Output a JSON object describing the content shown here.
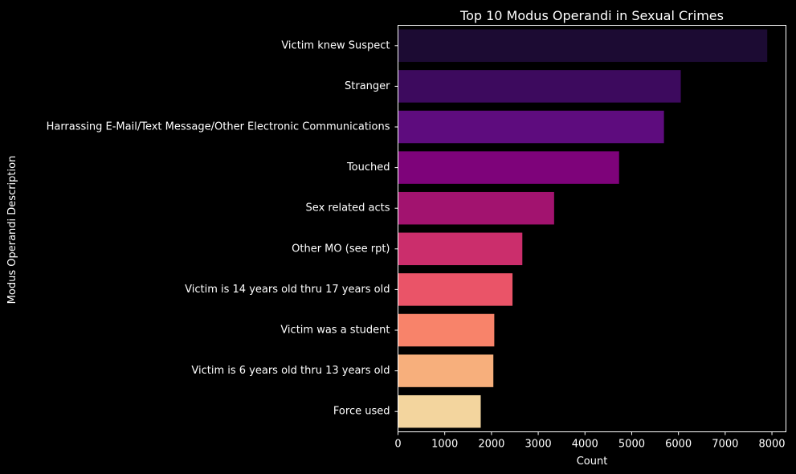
{
  "chart_data": {
    "type": "bar",
    "orientation": "horizontal",
    "title": "Top 10 Modus Operandi in Sexual Crimes",
    "xlabel": "Count",
    "ylabel": "Modus Operandi Description",
    "xlim": [
      0,
      8300
    ],
    "xticks": [
      0,
      1000,
      2000,
      3000,
      4000,
      5000,
      6000,
      7000,
      8000
    ],
    "xtick_labels": [
      "0",
      "1000",
      "2000",
      "3000",
      "4000",
      "5000",
      "6000",
      "7000",
      "8000"
    ],
    "grid": false,
    "legend": "none",
    "categories": [
      "Victim knew Suspect",
      "Stranger",
      "Harrassing E-Mail/Text Message/Other Electronic Communications",
      "Touched",
      "Sex related acts",
      "Other MO (see rpt)",
      "Victim is 14 years old thru 17 years old",
      "Victim was a student",
      "Victim is 6 years old thru 13 years old",
      "Force used"
    ],
    "values": [
      7900,
      6050,
      5690,
      4730,
      3340,
      2660,
      2450,
      2060,
      2040,
      1770
    ],
    "colors": [
      "#1c0b33",
      "#3d0a5e",
      "#5e0c7e",
      "#7e037a",
      "#a2136f",
      "#cb2e6c",
      "#ea5468",
      "#f8836a",
      "#f7af7c",
      "#f3d59e"
    ],
    "background": "#000000",
    "text_color": "#ffffff"
  }
}
